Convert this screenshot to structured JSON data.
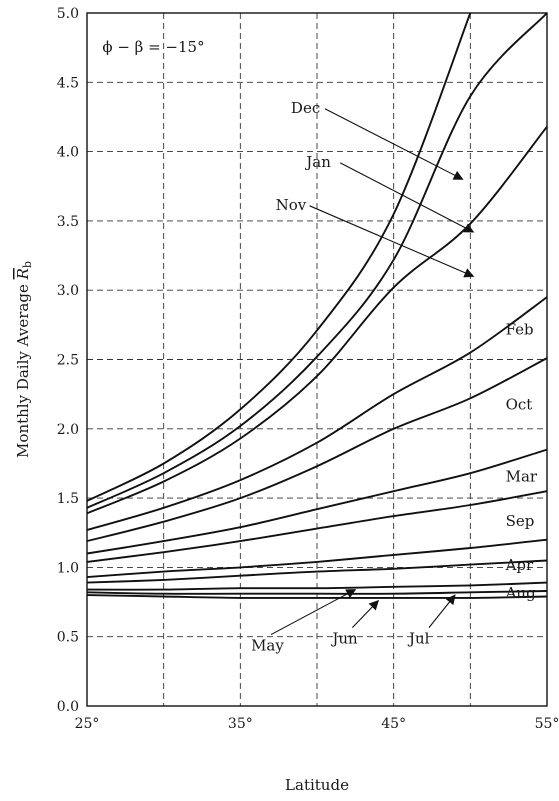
{
  "chart_data": {
    "type": "line",
    "annotation": "ϕ − β = −15°",
    "xlabel": "Latitude",
    "ylabel_main": "Monthly Daily Average ",
    "ylabel_symbol": "R",
    "ylabel_sub": "b",
    "xlim": [
      25,
      55
    ],
    "ylim": [
      0,
      5
    ],
    "grid": true,
    "x_ticks": [
      25,
      30,
      35,
      40,
      45,
      50,
      55
    ],
    "x_tick_labels": [
      "25°",
      "",
      "35°",
      "",
      "45°",
      "",
      "55°"
    ],
    "y_ticks": [
      0,
      0.5,
      1.0,
      1.5,
      2.0,
      2.5,
      3.0,
      3.5,
      4.0,
      4.5,
      5.0
    ],
    "y_tick_labels": [
      "0.0",
      "0.5",
      "1.0",
      "1.5",
      "2.0",
      "2.5",
      "3.0",
      "3.5",
      "4.0",
      "4.5",
      "5.0"
    ],
    "x": [
      25,
      30,
      35,
      40,
      45,
      50,
      55
    ],
    "series": [
      {
        "name": "Dec",
        "values": [
          1.48,
          1.75,
          2.14,
          2.71,
          3.55,
          5.0,
          null
        ]
      },
      {
        "name": "Jan",
        "values": [
          1.43,
          1.68,
          2.02,
          2.52,
          3.22,
          4.4,
          5.0
        ]
      },
      {
        "name": "Nov",
        "values": [
          1.39,
          1.62,
          1.93,
          2.38,
          3.02,
          3.48,
          4.18
        ]
      },
      {
        "name": "Feb",
        "values": [
          1.27,
          1.43,
          1.63,
          1.9,
          2.25,
          2.55,
          2.95
        ]
      },
      {
        "name": "Oct",
        "values": [
          1.19,
          1.33,
          1.5,
          1.73,
          2.0,
          2.22,
          2.51
        ]
      },
      {
        "name": "Mar",
        "values": [
          1.1,
          1.19,
          1.29,
          1.42,
          1.55,
          1.68,
          1.85
        ]
      },
      {
        "name": "Sep",
        "values": [
          1.04,
          1.11,
          1.19,
          1.28,
          1.37,
          1.45,
          1.55
        ]
      },
      {
        "name": "Apr",
        "values": [
          0.93,
          0.97,
          1.0,
          1.04,
          1.09,
          1.14,
          1.2
        ]
      },
      {
        "name": "Aug",
        "values": [
          0.89,
          0.91,
          0.94,
          0.97,
          0.99,
          1.02,
          1.05
        ]
      },
      {
        "name": "May",
        "values": [
          0.84,
          0.84,
          0.85,
          0.85,
          0.86,
          0.87,
          0.89
        ]
      },
      {
        "name": "Jul",
        "values": [
          0.82,
          0.81,
          0.81,
          0.81,
          0.81,
          0.82,
          0.83
        ]
      },
      {
        "name": "Jun",
        "values": [
          0.8,
          0.79,
          0.78,
          0.78,
          0.78,
          0.78,
          0.79
        ]
      }
    ],
    "labels": [
      {
        "name": "Dec",
        "at": [
          38.3,
          4.28
        ],
        "arrow_to": [
          49.5,
          3.8
        ]
      },
      {
        "name": "Jan",
        "at": [
          39.3,
          3.89
        ],
        "arrow_to": [
          50.2,
          3.42
        ]
      },
      {
        "name": "Nov",
        "at": [
          37.3,
          3.58
        ],
        "arrow_to": [
          50.2,
          3.1
        ]
      },
      {
        "name": "Feb",
        "at": [
          52.3,
          2.68
        ]
      },
      {
        "name": "Oct",
        "at": [
          52.3,
          2.14
        ]
      },
      {
        "name": "Mar",
        "at": [
          52.3,
          1.62
        ]
      },
      {
        "name": "Sep",
        "at": [
          52.3,
          1.3
        ]
      },
      {
        "name": "Apr",
        "at": [
          52.3,
          0.98
        ]
      },
      {
        "name": "Aug",
        "at": [
          52.3,
          0.78
        ]
      },
      {
        "name": "May",
        "at": [
          35.7,
          0.4
        ],
        "arrow_to": [
          42.5,
          0.84
        ]
      },
      {
        "name": "Jun",
        "at": [
          41.0,
          0.45
        ],
        "arrow_to": [
          44.0,
          0.76
        ]
      },
      {
        "name": "Jul",
        "at": [
          46.0,
          0.45
        ],
        "arrow_to": [
          49.0,
          0.8
        ]
      }
    ]
  }
}
